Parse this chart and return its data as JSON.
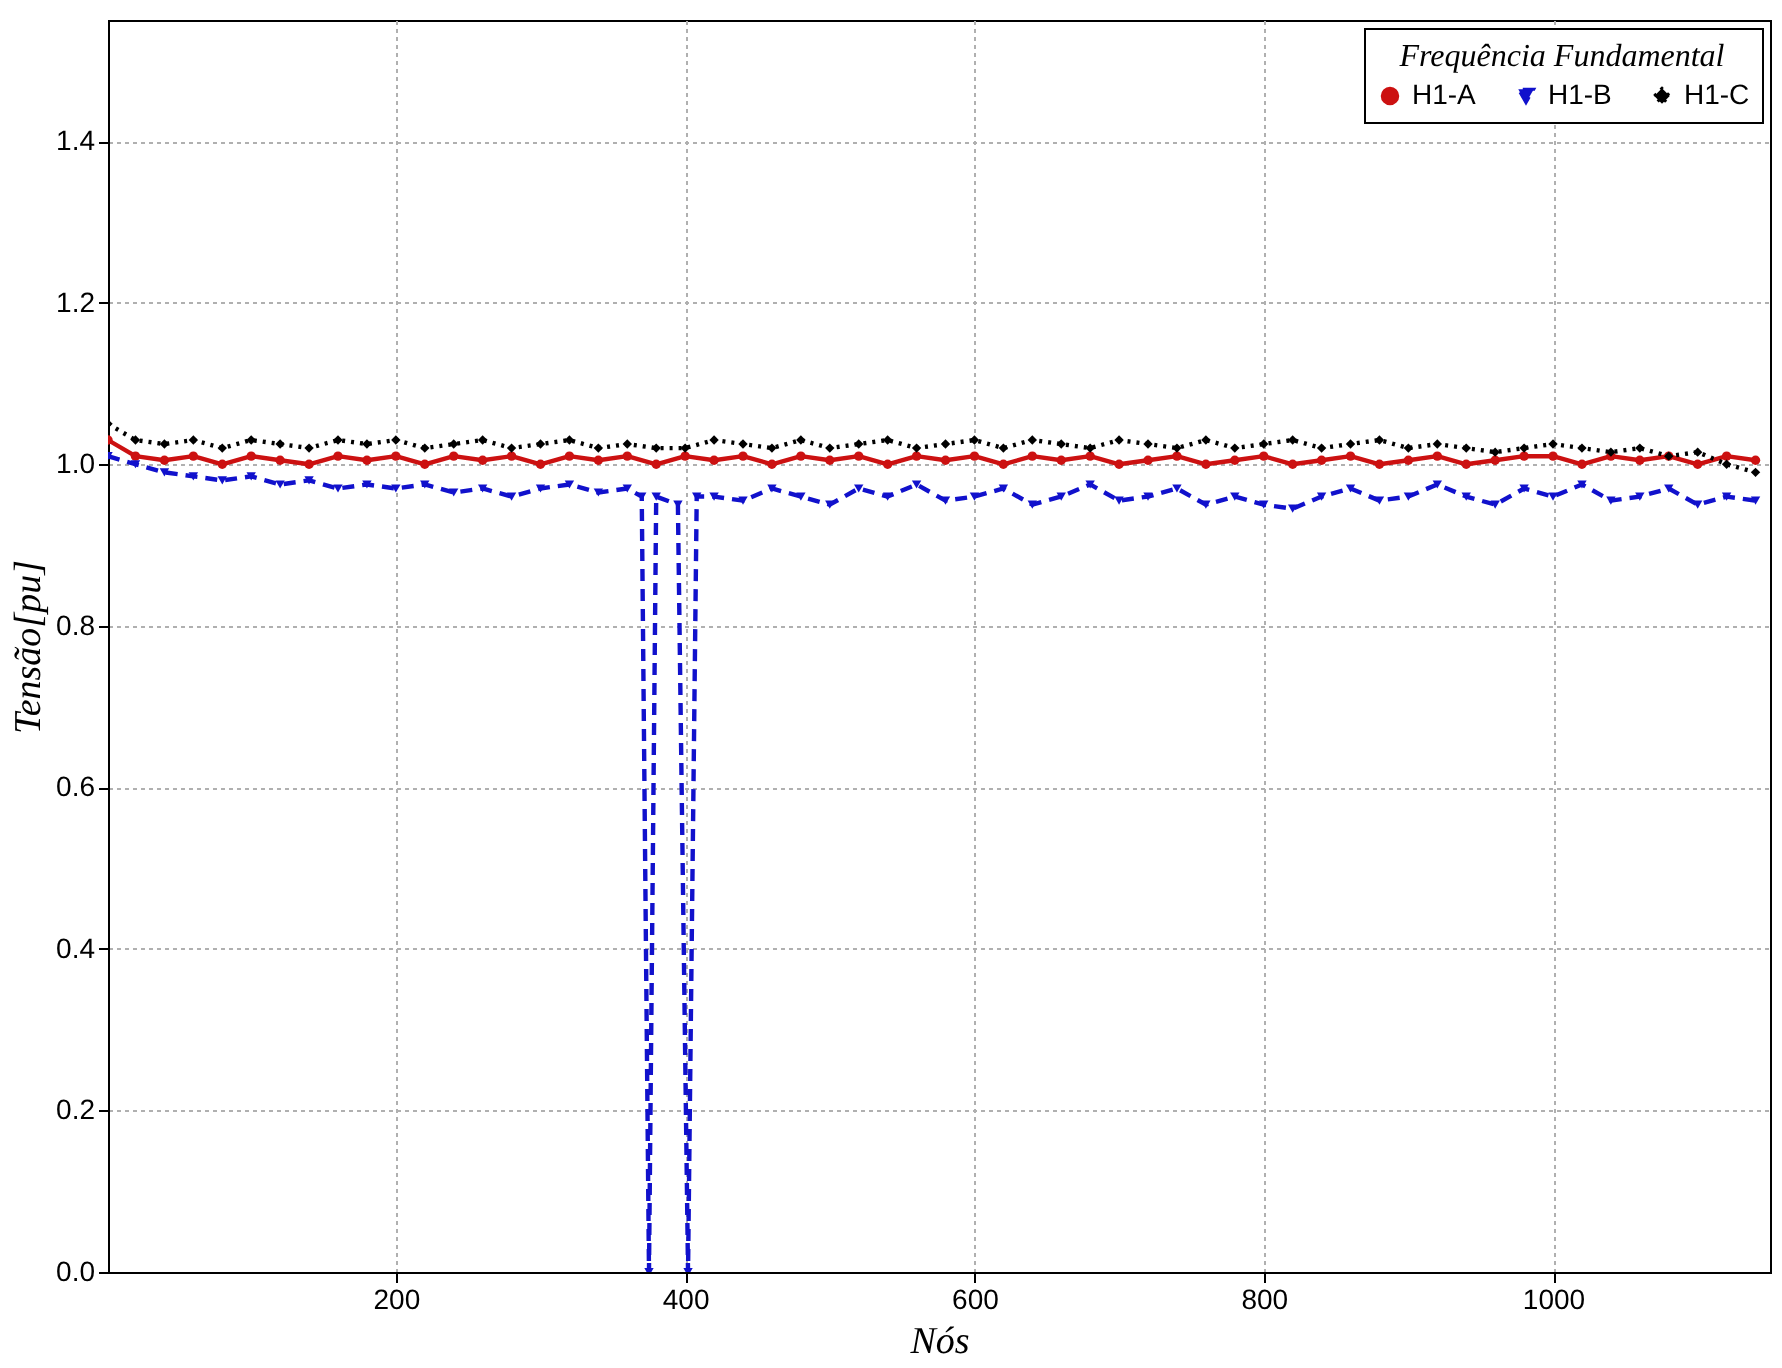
{
  "chart_data": {
    "type": "line",
    "xlabel": "Nós",
    "ylabel": "Tensão[pu]",
    "legend_title": "Frequência Fundamental",
    "legend": "top right",
    "grid": true,
    "xlim": [
      1,
      1150
    ],
    "xticks": [
      200,
      400,
      600,
      800,
      1000
    ],
    "ylim": [
      0,
      1.55
    ],
    "yticks": [
      {
        "value": 0,
        "label": "0.0"
      },
      {
        "value": 0.2,
        "label": "0.2"
      },
      {
        "value": 0.4,
        "label": "0.4"
      },
      {
        "value": 0.6,
        "label": "0.6"
      },
      {
        "value": 0.8,
        "label": "0.8"
      },
      {
        "value": 1,
        "label": "1.0"
      },
      {
        "value": 1.2,
        "label": "1.2"
      },
      {
        "value": 1.4,
        "label": "1.4"
      }
    ],
    "x": [
      1,
      20,
      40,
      60,
      80,
      100,
      120,
      140,
      160,
      180,
      200,
      220,
      240,
      260,
      280,
      300,
      320,
      340,
      360,
      380,
      400,
      420,
      440,
      460,
      480,
      500,
      520,
      540,
      560,
      580,
      600,
      620,
      640,
      660,
      680,
      700,
      720,
      740,
      760,
      780,
      800,
      820,
      840,
      860,
      880,
      900,
      920,
      940,
      960,
      980,
      1000,
      1020,
      1040,
      1060,
      1080,
      1100,
      1120,
      1140
    ],
    "series": [
      {
        "name": "H1-A",
        "color": "#cc1111",
        "marker": "circle",
        "line_style": "solid",
        "values": [
          1.03,
          1.01,
          1.005,
          1.01,
          1.0,
          1.01,
          1.005,
          1.0,
          1.01,
          1.005,
          1.01,
          1.0,
          1.01,
          1.005,
          1.01,
          1.0,
          1.01,
          1.005,
          1.01,
          1.0,
          1.01,
          1.005,
          1.01,
          1.0,
          1.01,
          1.005,
          1.01,
          1.0,
          1.01,
          1.005,
          1.01,
          1.0,
          1.01,
          1.005,
          1.01,
          1.0,
          1.005,
          1.01,
          1.0,
          1.005,
          1.01,
          1.0,
          1.005,
          1.01,
          1.0,
          1.005,
          1.01,
          1.0,
          1.005,
          1.01,
          1.01,
          1.0,
          1.01,
          1.005,
          1.01,
          1.0,
          1.01,
          1.005
        ]
      },
      {
        "name": "H1-B",
        "color": "#1111cc",
        "marker": "triangle",
        "line_style": "dashed",
        "x": [
          1,
          20,
          40,
          60,
          80,
          100,
          120,
          140,
          160,
          180,
          200,
          220,
          240,
          260,
          280,
          300,
          320,
          340,
          360,
          370,
          375,
          380,
          395,
          402,
          408,
          420,
          440,
          460,
          480,
          500,
          520,
          540,
          560,
          580,
          600,
          620,
          640,
          660,
          680,
          700,
          720,
          740,
          760,
          780,
          800,
          820,
          840,
          860,
          880,
          900,
          920,
          940,
          960,
          980,
          1000,
          1020,
          1040,
          1060,
          1080,
          1100,
          1120,
          1140
        ],
        "values": [
          1.01,
          1.0,
          0.99,
          0.985,
          0.98,
          0.985,
          0.975,
          0.98,
          0.97,
          0.975,
          0.97,
          0.975,
          0.965,
          0.97,
          0.96,
          0.97,
          0.975,
          0.965,
          0.97,
          0.96,
          0.0,
          0.96,
          0.95,
          0.0,
          0.96,
          0.96,
          0.955,
          0.97,
          0.96,
          0.95,
          0.97,
          0.96,
          0.975,
          0.955,
          0.96,
          0.97,
          0.95,
          0.96,
          0.975,
          0.955,
          0.96,
          0.97,
          0.95,
          0.96,
          0.95,
          0.945,
          0.96,
          0.97,
          0.955,
          0.96,
          0.975,
          0.96,
          0.95,
          0.97,
          0.96,
          0.975,
          0.955,
          0.96,
          0.97,
          0.95,
          0.96,
          0.955
        ]
      },
      {
        "name": "H1-C",
        "color": "#000000",
        "marker": "diamond",
        "line_style": "dotted",
        "values": [
          1.05,
          1.03,
          1.025,
          1.03,
          1.02,
          1.03,
          1.025,
          1.02,
          1.03,
          1.025,
          1.03,
          1.02,
          1.025,
          1.03,
          1.02,
          1.025,
          1.03,
          1.02,
          1.025,
          1.02,
          1.02,
          1.03,
          1.025,
          1.02,
          1.03,
          1.02,
          1.025,
          1.03,
          1.02,
          1.025,
          1.03,
          1.02,
          1.03,
          1.025,
          1.02,
          1.03,
          1.025,
          1.02,
          1.03,
          1.02,
          1.025,
          1.03,
          1.02,
          1.025,
          1.03,
          1.02,
          1.025,
          1.02,
          1.015,
          1.02,
          1.025,
          1.02,
          1.015,
          1.02,
          1.01,
          1.015,
          1.0,
          0.99
        ]
      }
    ]
  }
}
